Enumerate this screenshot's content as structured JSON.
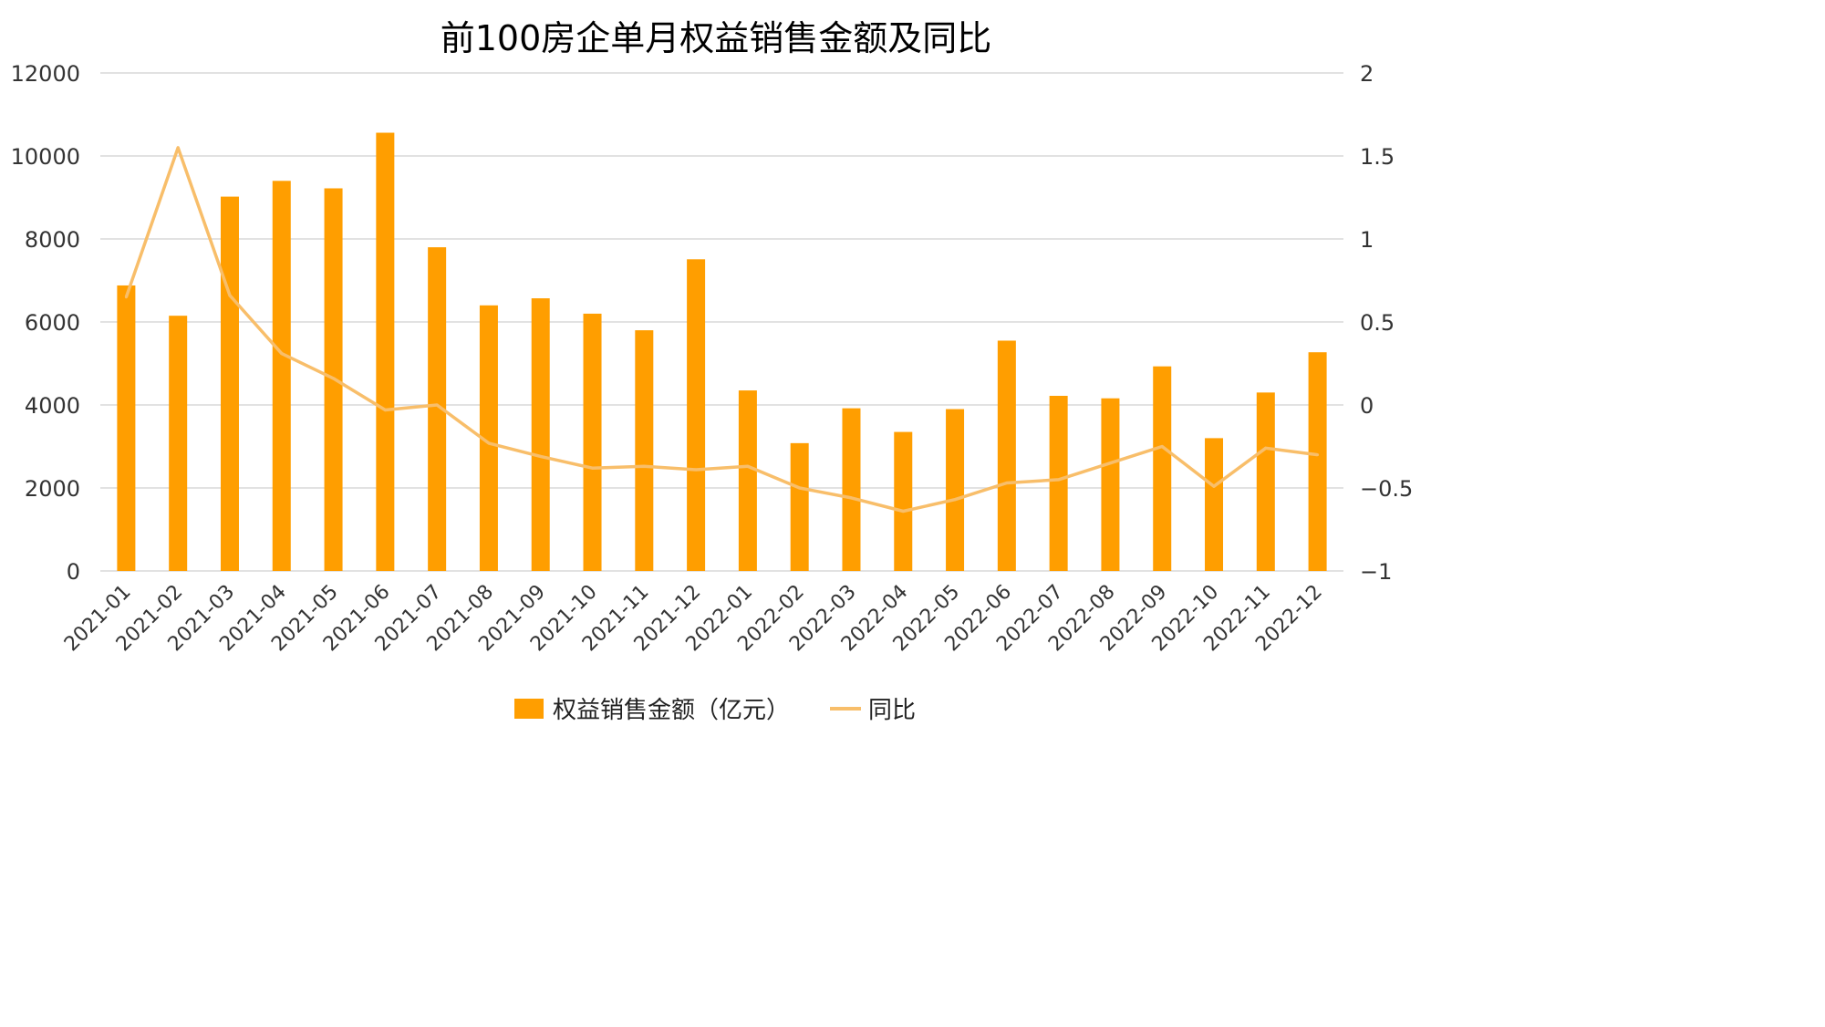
{
  "chart_data": {
    "type": "bar",
    "title": "前100房企单月权益销售金额及同比",
    "categories": [
      "2021-01",
      "2021-02",
      "2021-03",
      "2021-04",
      "2021-05",
      "2021-06",
      "2021-07",
      "2021-08",
      "2021-09",
      "2021-10",
      "2021-11",
      "2021-12",
      "2022-01",
      "2022-02",
      "2022-03",
      "2022-04",
      "2022-05",
      "2022-06",
      "2022-07",
      "2022-08",
      "2022-09",
      "2022-10",
      "2022-11",
      "2022-12"
    ],
    "series": [
      {
        "name": "权益销售金额（亿元）",
        "type": "bar",
        "axis": "left",
        "color": "#FF9E00",
        "values": [
          6880,
          6150,
          9020,
          9400,
          9220,
          10560,
          7800,
          6400,
          6570,
          6200,
          5800,
          7510,
          4350,
          3080,
          3920,
          3350,
          3900,
          5550,
          4220,
          4160,
          4930,
          3200,
          4300,
          5270
        ]
      },
      {
        "name": "同比",
        "type": "line",
        "axis": "right",
        "color": "#F8BE6A",
        "values": [
          0.65,
          1.55,
          0.66,
          0.31,
          0.16,
          -0.03,
          0.0,
          -0.23,
          -0.31,
          -0.38,
          -0.37,
          -0.39,
          -0.37,
          -0.5,
          -0.56,
          -0.64,
          -0.57,
          -0.47,
          -0.45,
          -0.35,
          -0.25,
          -0.49,
          -0.26,
          -0.3
        ]
      }
    ],
    "y_left": {
      "ylim": [
        0,
        12000
      ],
      "ticks": [
        "0",
        "2000",
        "4000",
        "6000",
        "8000",
        "10000",
        "12000"
      ]
    },
    "y_right": {
      "ylim": [
        -1,
        2
      ],
      "ticks": [
        "−1",
        "−0.5",
        "0",
        "0.5",
        "1",
        "1.5",
        "2"
      ]
    },
    "grid": true,
    "legend_position": "bottom"
  }
}
